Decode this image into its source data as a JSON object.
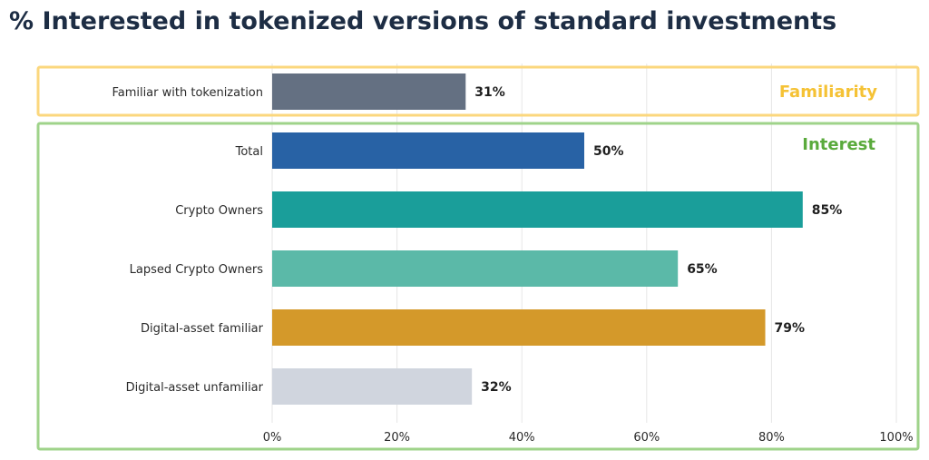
{
  "chart_data": {
    "type": "bar",
    "orientation": "horizontal",
    "title": "% Interested in tokenized versions of standard investments",
    "xlabel": "",
    "ylabel": "",
    "xlim": [
      0,
      100
    ],
    "x_ticks": [
      "0%",
      "20%",
      "40%",
      "60%",
      "80%",
      "100%"
    ],
    "grid": "vertical",
    "categories": [
      "Familiar with tokenization",
      "Total",
      "Crypto Owners",
      "Lapsed Crypto Owners",
      "Digital-asset familiar",
      "Digital-asset unfamiliar"
    ],
    "values": [
      31,
      50,
      85,
      65,
      79,
      32
    ],
    "value_labels": [
      "31%",
      "50%",
      "85%",
      "65%",
      "79%",
      "32%"
    ],
    "colors": [
      "#647082",
      "#2862a5",
      "#1a9e9a",
      "#5bb9a8",
      "#d4992a",
      "#d0d5de"
    ],
    "groups": [
      {
        "label": "Familiarity",
        "color": "#f5c235",
        "border": "#fbd77d",
        "categories": [
          "Familiar with tokenization"
        ]
      },
      {
        "label": "Interest",
        "color": "#5aaa3c",
        "border": "#9fd38a",
        "categories": [
          "Total",
          "Crypto Owners",
          "Lapsed Crypto Owners",
          "Digital-asset familiar",
          "Digital-asset unfamiliar"
        ]
      }
    ]
  }
}
